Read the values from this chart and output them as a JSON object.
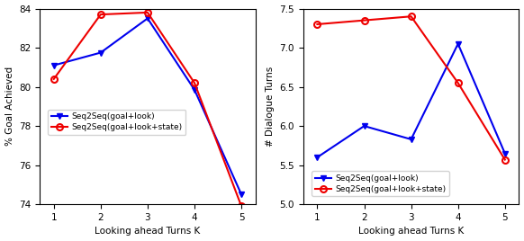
{
  "x": [
    1,
    2,
    3,
    4,
    5
  ],
  "left_blue": [
    81.1,
    81.75,
    83.5,
    79.85,
    74.5
  ],
  "left_red": [
    80.4,
    83.7,
    83.8,
    80.2,
    73.9
  ],
  "left_ylabel": "% Goal Achieved",
  "left_ylim": [
    74,
    84
  ],
  "left_yticks": [
    74,
    76,
    78,
    80,
    82,
    84
  ],
  "right_blue": [
    5.6,
    6.0,
    5.83,
    7.05,
    5.65
  ],
  "right_red": [
    7.3,
    7.35,
    7.4,
    6.55,
    5.57
  ],
  "right_ylabel": "# Dialogue Turns",
  "right_ylim": [
    5.0,
    7.5
  ],
  "right_yticks": [
    5.0,
    5.5,
    6.0,
    6.5,
    7.0,
    7.5
  ],
  "xlabel": "Looking ahead Turns K",
  "legend_blue": "Seq2Seq(goal+look)",
  "legend_red": "Seq2Seq(goal+look+state)",
  "blue_color": "#0000ee",
  "red_color": "#ee0000",
  "xticks": [
    1,
    2,
    3,
    4,
    5
  ]
}
